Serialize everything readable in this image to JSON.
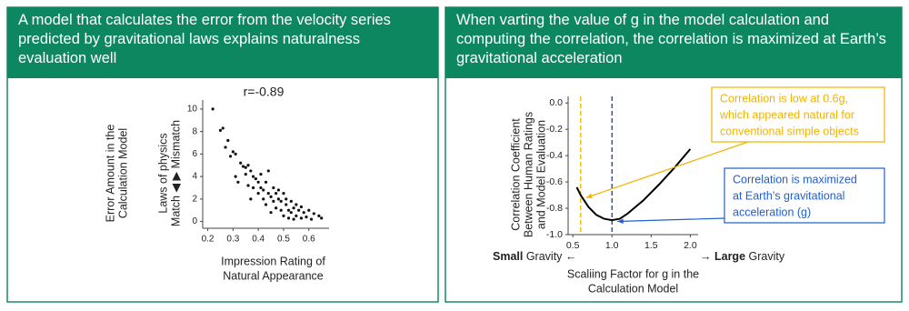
{
  "chart_data": [
    {
      "type": "scatter",
      "title": "A model that calculates the error from the velocity series predicted by gravitational laws explains naturalness evaluation well",
      "subtitle": "r=-0.89",
      "x_label": [
        "Impression Rating of",
        "Natural Appearance"
      ],
      "y_label": [
        "Error Amount in the",
        "Calculation Model",
        "Laws of physics",
        "Match ◀ ▶ Mismatch"
      ],
      "color": "#111111",
      "x": [
        0.22,
        0.25,
        0.26,
        0.27,
        0.28,
        0.29,
        0.3,
        0.31,
        0.31,
        0.32,
        0.33,
        0.34,
        0.35,
        0.35,
        0.36,
        0.36,
        0.37,
        0.37,
        0.38,
        0.38,
        0.39,
        0.4,
        0.4,
        0.41,
        0.41,
        0.42,
        0.42,
        0.43,
        0.43,
        0.44,
        0.44,
        0.45,
        0.45,
        0.46,
        0.46,
        0.47,
        0.47,
        0.48,
        0.48,
        0.49,
        0.49,
        0.5,
        0.5,
        0.51,
        0.51,
        0.52,
        0.52,
        0.53,
        0.53,
        0.54,
        0.54,
        0.55,
        0.55,
        0.56,
        0.57,
        0.57,
        0.58,
        0.59,
        0.6,
        0.61,
        0.62,
        0.64,
        0.65
      ],
      "values": [
        10,
        8.1,
        8.3,
        6.6,
        7.2,
        5.8,
        6.2,
        6.0,
        4.0,
        3.5,
        5.2,
        4.9,
        4.8,
        4.2,
        5.0,
        3.2,
        4.5,
        2.0,
        4.0,
        3.0,
        3.8,
        3.5,
        2.5,
        4.2,
        3.0,
        2.8,
        2.0,
        3.5,
        1.5,
        2.5,
        4.5,
        2.2,
        0.8,
        3.0,
        1.8,
        2.5,
        1.2,
        2.0,
        2.8,
        1.0,
        1.8,
        2.5,
        0.5,
        1.5,
        2.0,
        1.0,
        0.3,
        1.8,
        0.8,
        1.2,
        0.2,
        0.5,
        1.5,
        1.0,
        0.3,
        1.3,
        0.8,
        0.4,
        1.0,
        0.2,
        0.7,
        0.5,
        0.3
      ],
      "xlim": [
        0.18,
        0.68
      ],
      "xticks": [
        0.2,
        0.3,
        0.4,
        0.5,
        0.6
      ],
      "ylim": [
        -0.6,
        10.8
      ],
      "yticks": [
        0,
        2,
        4,
        6,
        8,
        10
      ]
    },
    {
      "type": "line",
      "title": "When varting the value of g in the model calculation and computing the correlation, the correlation is maximized at Earth’s gravitational acceleration",
      "x_label": [
        "Scaliing Factor for g in the",
        "Calculation Model"
      ],
      "y_label": [
        "Correlation Coefficient",
        "Between Human Ratings",
        "and Model Evaluation"
      ],
      "color": "#000000",
      "x": [
        0.55,
        0.6,
        0.7,
        0.8,
        0.9,
        1.0,
        1.1,
        1.2,
        1.4,
        1.6,
        1.8,
        2.0
      ],
      "values": [
        -0.64,
        -0.7,
        -0.79,
        -0.85,
        -0.88,
        -0.89,
        -0.88,
        -0.84,
        -0.74,
        -0.62,
        -0.49,
        -0.35
      ],
      "xlim": [
        0.44,
        2.1
      ],
      "xticks": [
        0.5,
        {
          "value": 1,
          "label": "1.0"
        },
        1.5,
        {
          "value": 2,
          "label": "2.0"
        }
      ],
      "ylim": [
        -1.0,
        0.05
      ],
      "yticks": [
        {
          "value": 0,
          "label": "0.0"
        },
        -0.2,
        -0.4,
        -0.6,
        -0.8,
        {
          "value": -1,
          "label": "-1.0"
        }
      ],
      "reference_lines": [
        {
          "x": 0.6,
          "color": "#f0b400"
        },
        {
          "x": 1.0,
          "color": "#1f3f9f"
        }
      ],
      "annotations": [
        {
          "text": [
            "Correlation is low at 0.6g,",
            "which appeared natural for",
            "conventional simple objects"
          ],
          "color": "#f0b400"
        },
        {
          "text": [
            "Correlation is maximized",
            "at Earth’s gravitational",
            "acceleration (g)"
          ],
          "color": "#1f5fcf"
        }
      ],
      "gravity_labels": [
        {
          "strong": "Small",
          "rest": " Gravity ←"
        },
        {
          "lead": "→ ",
          "strong": "Large",
          "rest": " Gravity"
        }
      ]
    }
  ]
}
